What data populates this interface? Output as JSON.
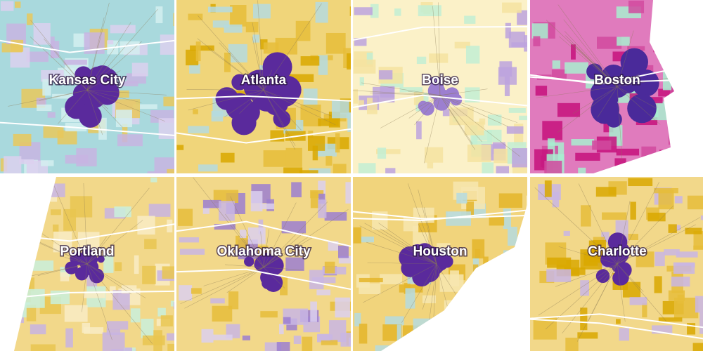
{
  "maps": [
    {
      "label": "Kansas City"
    },
    {
      "label": "Atlanta"
    },
    {
      "label": "Boise"
    },
    {
      "label": "Boston"
    },
    {
      "label": "Portland"
    },
    {
      "label": "Oklahoma City"
    },
    {
      "label": "Houston"
    },
    {
      "label": "Charlotte"
    }
  ]
}
